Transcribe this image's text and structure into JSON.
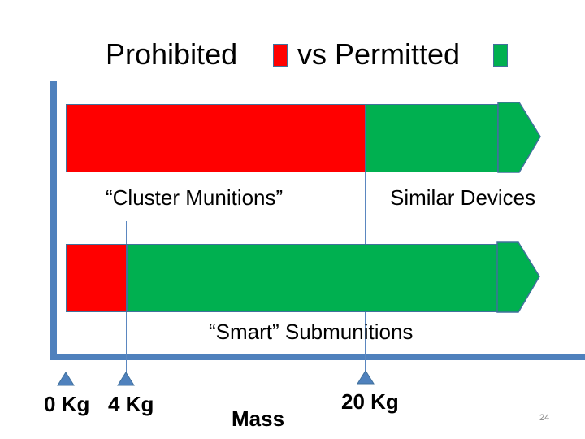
{
  "title": {
    "prohibited": "Prohibited",
    "permitted": "vs Permitted"
  },
  "colors": {
    "prohibited": "#ff0000",
    "permitted": "#00b050",
    "axis": "#4f81bd",
    "outline": "#41719c"
  },
  "bars": {
    "top": {
      "left_label": "“Cluster Munitions”",
      "right_label": "Similar Devices"
    },
    "bottom": {
      "label": "“Smart” Submunitions"
    }
  },
  "axis": {
    "tick_0": "0 Kg",
    "tick_4": "4 Kg",
    "tick_20": "20 Kg",
    "label": "Mass",
    "marker_icon": "triangle-marker-icon"
  },
  "page_number": "24"
}
